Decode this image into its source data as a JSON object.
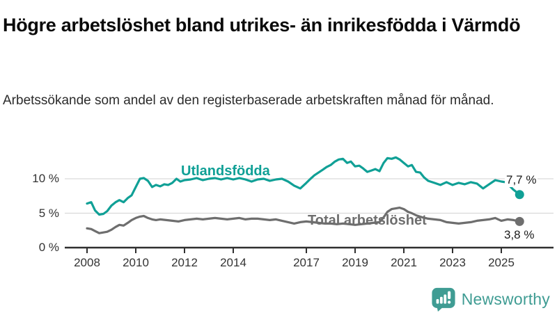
{
  "header": {
    "title": "Högre arbetslöshet bland utrikes- än inrikesfödda i Värmdö",
    "subtitle": "Arbetssökande som andel av den registerbaserade arbetskraften månad för månad."
  },
  "colors": {
    "foreign_born_line": "#10a096",
    "total_line": "#6e6e6e",
    "gridline": "#d9d9d9",
    "axis": "#2f2f2f",
    "tick_text": "#333333",
    "value_label_text": "#1a1a1a",
    "logo_teal": "#3f9c93"
  },
  "chart_data": {
    "type": "line",
    "title": "Högre arbetslöshet bland utrikes- än inrikesfödda i Värmdö",
    "subtitle": "Arbetssökande som andel av den registerbaserade arbetskraften månad för månad.",
    "xlabel": "",
    "ylabel": "",
    "unit": "%",
    "xlim": [
      2007.9,
      2026.2
    ],
    "ylim": [
      0,
      14
    ],
    "grid": "horizontal",
    "legend_position": "inline-labels",
    "y_ticks": [
      {
        "value": 0,
        "label": "0 %"
      },
      {
        "value": 5,
        "label": "5 %"
      },
      {
        "value": 10,
        "label": "10 %"
      }
    ],
    "x_ticks": [
      {
        "value": 2008,
        "label": "2008"
      },
      {
        "value": 2010,
        "label": "2010"
      },
      {
        "value": 2012,
        "label": "2012"
      },
      {
        "value": 2014,
        "label": "2014"
      },
      {
        "value": 2017,
        "label": "2017"
      },
      {
        "value": 2019,
        "label": "2019"
      },
      {
        "value": 2021,
        "label": "2021"
      },
      {
        "value": 2023,
        "label": "2023"
      },
      {
        "value": 2025,
        "label": "2025"
      }
    ],
    "series": [
      {
        "name": "Utlandsfödda",
        "color": "#10a096",
        "end_label": "7,7 %",
        "end_value": 7.7,
        "points": [
          [
            2008.0,
            6.4
          ],
          [
            2008.17,
            6.6
          ],
          [
            2008.33,
            5.4
          ],
          [
            2008.5,
            4.8
          ],
          [
            2008.67,
            4.9
          ],
          [
            2008.83,
            5.3
          ],
          [
            2009.0,
            6.1
          ],
          [
            2009.17,
            6.6
          ],
          [
            2009.33,
            6.9
          ],
          [
            2009.5,
            6.6
          ],
          [
            2009.67,
            7.2
          ],
          [
            2009.83,
            7.6
          ],
          [
            2010.0,
            8.8
          ],
          [
            2010.17,
            10.0
          ],
          [
            2010.33,
            10.1
          ],
          [
            2010.5,
            9.7
          ],
          [
            2010.67,
            8.8
          ],
          [
            2010.83,
            9.1
          ],
          [
            2011.0,
            8.9
          ],
          [
            2011.17,
            9.2
          ],
          [
            2011.33,
            9.1
          ],
          [
            2011.5,
            9.4
          ],
          [
            2011.67,
            10.0
          ],
          [
            2011.83,
            9.6
          ],
          [
            2012.0,
            9.8
          ],
          [
            2012.25,
            9.9
          ],
          [
            2012.5,
            10.1
          ],
          [
            2012.75,
            9.8
          ],
          [
            2013.0,
            10.0
          ],
          [
            2013.25,
            10.1
          ],
          [
            2013.5,
            9.9
          ],
          [
            2013.75,
            10.1
          ],
          [
            2014.0,
            9.9
          ],
          [
            2014.25,
            10.1
          ],
          [
            2014.5,
            9.9
          ],
          [
            2014.75,
            9.6
          ],
          [
            2015.0,
            9.9
          ],
          [
            2015.25,
            10.0
          ],
          [
            2015.5,
            9.7
          ],
          [
            2015.75,
            9.9
          ],
          [
            2016.0,
            10.0
          ],
          [
            2016.25,
            9.6
          ],
          [
            2016.5,
            9.0
          ],
          [
            2016.75,
            8.6
          ],
          [
            2017.0,
            9.4
          ],
          [
            2017.17,
            10.0
          ],
          [
            2017.33,
            10.5
          ],
          [
            2017.5,
            10.9
          ],
          [
            2017.67,
            11.3
          ],
          [
            2017.83,
            11.7
          ],
          [
            2018.0,
            12.0
          ],
          [
            2018.17,
            12.5
          ],
          [
            2018.33,
            12.8
          ],
          [
            2018.5,
            12.9
          ],
          [
            2018.67,
            12.3
          ],
          [
            2018.83,
            12.5
          ],
          [
            2019.0,
            11.8
          ],
          [
            2019.17,
            11.9
          ],
          [
            2019.33,
            11.5
          ],
          [
            2019.5,
            11.0
          ],
          [
            2019.67,
            11.2
          ],
          [
            2019.83,
            11.4
          ],
          [
            2020.0,
            11.1
          ],
          [
            2020.17,
            12.3
          ],
          [
            2020.33,
            13.0
          ],
          [
            2020.5,
            12.9
          ],
          [
            2020.67,
            13.1
          ],
          [
            2020.83,
            12.8
          ],
          [
            2021.0,
            12.3
          ],
          [
            2021.17,
            11.8
          ],
          [
            2021.33,
            12.0
          ],
          [
            2021.5,
            11.0
          ],
          [
            2021.67,
            10.9
          ],
          [
            2021.83,
            10.2
          ],
          [
            2022.0,
            9.7
          ],
          [
            2022.25,
            9.4
          ],
          [
            2022.5,
            9.1
          ],
          [
            2022.75,
            9.5
          ],
          [
            2023.0,
            9.1
          ],
          [
            2023.25,
            9.4
          ],
          [
            2023.5,
            9.2
          ],
          [
            2023.75,
            9.5
          ],
          [
            2024.0,
            9.3
          ],
          [
            2024.25,
            8.6
          ],
          [
            2024.5,
            9.2
          ],
          [
            2024.75,
            9.8
          ],
          [
            2025.0,
            9.6
          ],
          [
            2025.17,
            9.5
          ],
          [
            2025.33,
            9.0
          ],
          [
            2025.5,
            8.4
          ],
          [
            2025.75,
            7.7
          ]
        ]
      },
      {
        "name": "Total arbetslöshet",
        "color": "#6e6e6e",
        "end_label": "3,8 %",
        "end_value": 3.8,
        "points": [
          [
            2008.0,
            2.8
          ],
          [
            2008.17,
            2.7
          ],
          [
            2008.33,
            2.4
          ],
          [
            2008.5,
            2.1
          ],
          [
            2008.67,
            2.2
          ],
          [
            2008.83,
            2.3
          ],
          [
            2009.0,
            2.6
          ],
          [
            2009.17,
            3.0
          ],
          [
            2009.33,
            3.3
          ],
          [
            2009.5,
            3.2
          ],
          [
            2009.67,
            3.6
          ],
          [
            2009.83,
            4.0
          ],
          [
            2010.0,
            4.3
          ],
          [
            2010.17,
            4.5
          ],
          [
            2010.33,
            4.6
          ],
          [
            2010.5,
            4.3
          ],
          [
            2010.67,
            4.1
          ],
          [
            2010.83,
            4.0
          ],
          [
            2011.0,
            4.1
          ],
          [
            2011.25,
            4.0
          ],
          [
            2011.5,
            3.9
          ],
          [
            2011.75,
            3.8
          ],
          [
            2012.0,
            4.0
          ],
          [
            2012.25,
            4.1
          ],
          [
            2012.5,
            4.2
          ],
          [
            2012.75,
            4.1
          ],
          [
            2013.0,
            4.2
          ],
          [
            2013.25,
            4.3
          ],
          [
            2013.5,
            4.2
          ],
          [
            2013.75,
            4.1
          ],
          [
            2014.0,
            4.2
          ],
          [
            2014.25,
            4.3
          ],
          [
            2014.5,
            4.1
          ],
          [
            2014.75,
            4.2
          ],
          [
            2015.0,
            4.2
          ],
          [
            2015.25,
            4.1
          ],
          [
            2015.5,
            4.0
          ],
          [
            2015.75,
            4.1
          ],
          [
            2016.0,
            3.9
          ],
          [
            2016.25,
            3.7
          ],
          [
            2016.5,
            3.5
          ],
          [
            2016.75,
            3.7
          ],
          [
            2017.0,
            3.8
          ],
          [
            2017.25,
            3.7
          ],
          [
            2017.5,
            3.6
          ],
          [
            2017.75,
            3.5
          ],
          [
            2018.0,
            3.5
          ],
          [
            2018.25,
            3.4
          ],
          [
            2018.5,
            3.5
          ],
          [
            2018.75,
            3.4
          ],
          [
            2019.0,
            3.3
          ],
          [
            2019.25,
            3.4
          ],
          [
            2019.5,
            3.5
          ],
          [
            2019.75,
            3.6
          ],
          [
            2020.0,
            3.7
          ],
          [
            2020.17,
            4.4
          ],
          [
            2020.33,
            5.2
          ],
          [
            2020.5,
            5.6
          ],
          [
            2020.67,
            5.7
          ],
          [
            2020.83,
            5.8
          ],
          [
            2021.0,
            5.6
          ],
          [
            2021.17,
            5.2
          ],
          [
            2021.33,
            5.0
          ],
          [
            2021.5,
            4.7
          ],
          [
            2021.75,
            4.4
          ],
          [
            2022.0,
            4.2
          ],
          [
            2022.25,
            4.1
          ],
          [
            2022.5,
            4.0
          ],
          [
            2022.75,
            3.7
          ],
          [
            2023.0,
            3.6
          ],
          [
            2023.25,
            3.5
          ],
          [
            2023.5,
            3.6
          ],
          [
            2023.75,
            3.7
          ],
          [
            2024.0,
            3.9
          ],
          [
            2024.25,
            4.0
          ],
          [
            2024.5,
            4.1
          ],
          [
            2024.75,
            4.3
          ],
          [
            2025.0,
            3.9
          ],
          [
            2025.25,
            4.1
          ],
          [
            2025.5,
            4.0
          ],
          [
            2025.75,
            3.8
          ]
        ]
      }
    ]
  },
  "branding": {
    "logo_text": "Newsworthy"
  }
}
